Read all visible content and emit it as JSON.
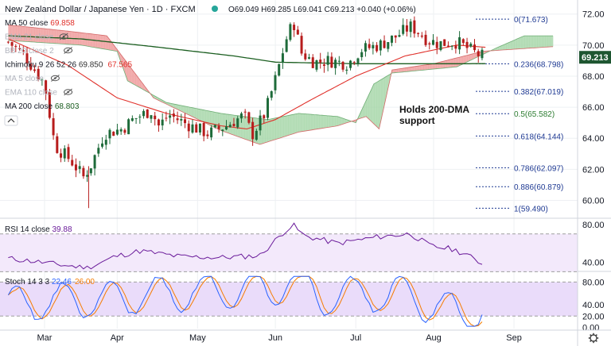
{
  "header": {
    "title": "New Zealand Dollar / Japanese Yen · 1D · FXCM",
    "ohlc": "O69.049 H69.285 L69.041 C69.213 +0.040 (+0.06%)"
  },
  "legend": [
    {
      "label": "MA 50 close",
      "value": "69.858",
      "color": "#e0302a",
      "hidden": false
    },
    {
      "label": "EMA 21 close",
      "value": "",
      "color": "#c0c4cc",
      "hidden": true
    },
    {
      "label": "BB 20 close 2",
      "value": "",
      "color": "#c0c4cc",
      "hidden": true
    },
    {
      "label": "Ichimoku 9 26 52 26",
      "value": "69.850",
      "value2": "67.565",
      "color": "#333333",
      "hidden": false
    },
    {
      "label": "MA 5 close",
      "value": "",
      "color": "#c0c4cc",
      "hidden": true
    },
    {
      "label": "EMA 110 close",
      "value": "",
      "color": "#c0c4cc",
      "hidden": true
    },
    {
      "label": "MA 200 close",
      "value": "68.803",
      "color": "#1b5e20",
      "hidden": false
    }
  ],
  "price_badge": "69.213",
  "annotation": [
    "Holds 200-DMA",
    "support"
  ],
  "fib_levels": [
    {
      "label": "0(71.673)",
      "value": 71.673
    },
    {
      "label": "0.236(68.798)",
      "value": 68.798
    },
    {
      "label": "0.382(67.019)",
      "value": 67.019
    },
    {
      "label": "0.5(65.582)",
      "value": 65.582
    },
    {
      "label": "0.618(64.144)",
      "value": 64.144
    },
    {
      "label": "0.786(62.097)",
      "value": 62.097
    },
    {
      "label": "0.886(60.879)",
      "value": 60.879
    },
    {
      "label": "1(59.490)",
      "value": 59.49
    }
  ],
  "rsi": {
    "label": "RSI 14 close",
    "value": "39.88"
  },
  "stoch": {
    "label": "Stoch 14 3 3",
    "k": "22.46",
    "d": "26.00"
  },
  "colors": {
    "up": "#26a69a",
    "down": "#ef5350",
    "candle_up": "#1e6b3a",
    "candle_down": "#b71c1c",
    "ma50": "#e0302a",
    "ma200": "#1b5e20",
    "cloud_bull": "#a5d6a7",
    "cloud_bear": "#ef9a9a",
    "fib": "#1f3a93",
    "fib_green": "#2e7d32",
    "rsi": "#6a1b9a",
    "stoch_k": "#2962ff",
    "stoch_d": "#f57c00",
    "badge": "#1e5631"
  },
  "chart_data": [
    {
      "type": "candlestick",
      "title": "New Zealand Dollar / Japanese Yen · 1D · FXCM",
      "x_ticks": [
        "Mar",
        "Apr",
        "May",
        "Jun",
        "Jul",
        "Aug",
        "Sep"
      ],
      "y_ticks": [
        60.0,
        62.0,
        64.0,
        66.0,
        68.0,
        70.0,
        72.0
      ],
      "ylim": [
        59.0,
        72.7
      ],
      "grid": true,
      "series": [
        {
          "name": "MA 50 close",
          "last": 69.858
        },
        {
          "name": "MA 200 close",
          "last": 68.803
        },
        {
          "name": "Ichimoku 9 26 52 26",
          "last": 69.85,
          "last2": 67.565
        }
      ],
      "close_path": [
        {
          "x": "Feb 18",
          "y": 70.2
        },
        {
          "x": "Feb 24",
          "y": 69.4
        },
        {
          "x": "Mar 1",
          "y": 67.5
        },
        {
          "x": "Mar 5",
          "y": 63.5
        },
        {
          "x": "Mar 11",
          "y": 62.6
        },
        {
          "x": "Mar 16",
          "y": 61.5
        },
        {
          "x": "Mar 19",
          "y": 62.3
        },
        {
          "x": "Mar 24",
          "y": 64.3
        },
        {
          "x": "Mar 31",
          "y": 64.6
        },
        {
          "x": "Apr 7",
          "y": 65.2
        },
        {
          "x": "Apr 14",
          "y": 65.8
        },
        {
          "x": "Apr 17",
          "y": 64.8
        },
        {
          "x": "Apr 21",
          "y": 65.5
        },
        {
          "x": "Apr 28",
          "y": 64.9
        },
        {
          "x": "May 5",
          "y": 64.3
        },
        {
          "x": "May 12",
          "y": 64.8
        },
        {
          "x": "May 19",
          "y": 65.5
        },
        {
          "x": "May 22",
          "y": 64.2
        },
        {
          "x": "May 27",
          "y": 65.6
        },
        {
          "x": "Jun 1",
          "y": 67.8
        },
        {
          "x": "Jun 5",
          "y": 70.3
        },
        {
          "x": "Jun 8",
          "y": 71.5
        },
        {
          "x": "Jun 11",
          "y": 69.5
        },
        {
          "x": "Jun 16",
          "y": 68.9
        },
        {
          "x": "Jun 22",
          "y": 69.0
        },
        {
          "x": "Jun 29",
          "y": 68.8
        },
        {
          "x": "Jul 3",
          "y": 69.7
        },
        {
          "x": "Jul 10",
          "y": 70.0
        },
        {
          "x": "Jul 16",
          "y": 70.5
        },
        {
          "x": "Jul 22",
          "y": 71.2
        },
        {
          "x": "Jul 24",
          "y": 71.0
        },
        {
          "x": "Jul 29",
          "y": 70.3
        },
        {
          "x": "Aug 3",
          "y": 70.1
        },
        {
          "x": "Aug 10",
          "y": 70.2
        },
        {
          "x": "Aug 14",
          "y": 69.8
        },
        {
          "x": "Aug 18",
          "y": 69.4
        },
        {
          "x": "Aug 21",
          "y": 69.213
        }
      ],
      "ma50_path": [
        {
          "x": "Feb 18",
          "y": 70.4
        },
        {
          "x": "Mar 10",
          "y": 68.7
        },
        {
          "x": "Apr 1",
          "y": 66.6
        },
        {
          "x": "Apr 20",
          "y": 65.6
        },
        {
          "x": "May 10",
          "y": 64.8
        },
        {
          "x": "May 20",
          "y": 64.6
        },
        {
          "x": "Jun 1",
          "y": 65.2
        },
        {
          "x": "Jun 15",
          "y": 66.5
        },
        {
          "x": "Jul 1",
          "y": 68.0
        },
        {
          "x": "Jul 20",
          "y": 69.3
        },
        {
          "x": "Aug 10",
          "y": 70.0
        },
        {
          "x": "Aug 21",
          "y": 69.858
        }
      ],
      "ma200_path": [
        {
          "x": "Feb 18",
          "y": 70.6
        },
        {
          "x": "Mar 15",
          "y": 70.4
        },
        {
          "x": "Apr 15",
          "y": 69.9
        },
        {
          "x": "May 15",
          "y": 69.3
        },
        {
          "x": "Jun 1",
          "y": 68.9
        },
        {
          "x": "Jul 1",
          "y": 68.8
        },
        {
          "x": "Aug 1",
          "y": 68.8
        },
        {
          "x": "Aug 21",
          "y": 68.803
        }
      ]
    },
    {
      "type": "line",
      "title": "RSI 14 close",
      "ylim": [
        32,
        84
      ],
      "y_ticks": [
        40.0,
        80.0
      ],
      "bands": [
        30,
        70
      ],
      "last": 39.88,
      "x_ticks": [
        "Mar",
        "Apr",
        "May",
        "Jun",
        "Jul",
        "Aug",
        "Sep"
      ]
    },
    {
      "type": "line",
      "title": "Stoch 14 3 3",
      "ylim": [
        -2,
        96
      ],
      "y_ticks": [
        0.0,
        20.0,
        40.0,
        80.0
      ],
      "bands": [
        20,
        80
      ],
      "series": [
        {
          "name": "K",
          "last": 22.46
        },
        {
          "name": "D",
          "last": 26.0
        }
      ],
      "x_ticks": [
        "Mar",
        "Apr",
        "May",
        "Jun",
        "Jul",
        "Aug",
        "Sep"
      ]
    }
  ]
}
